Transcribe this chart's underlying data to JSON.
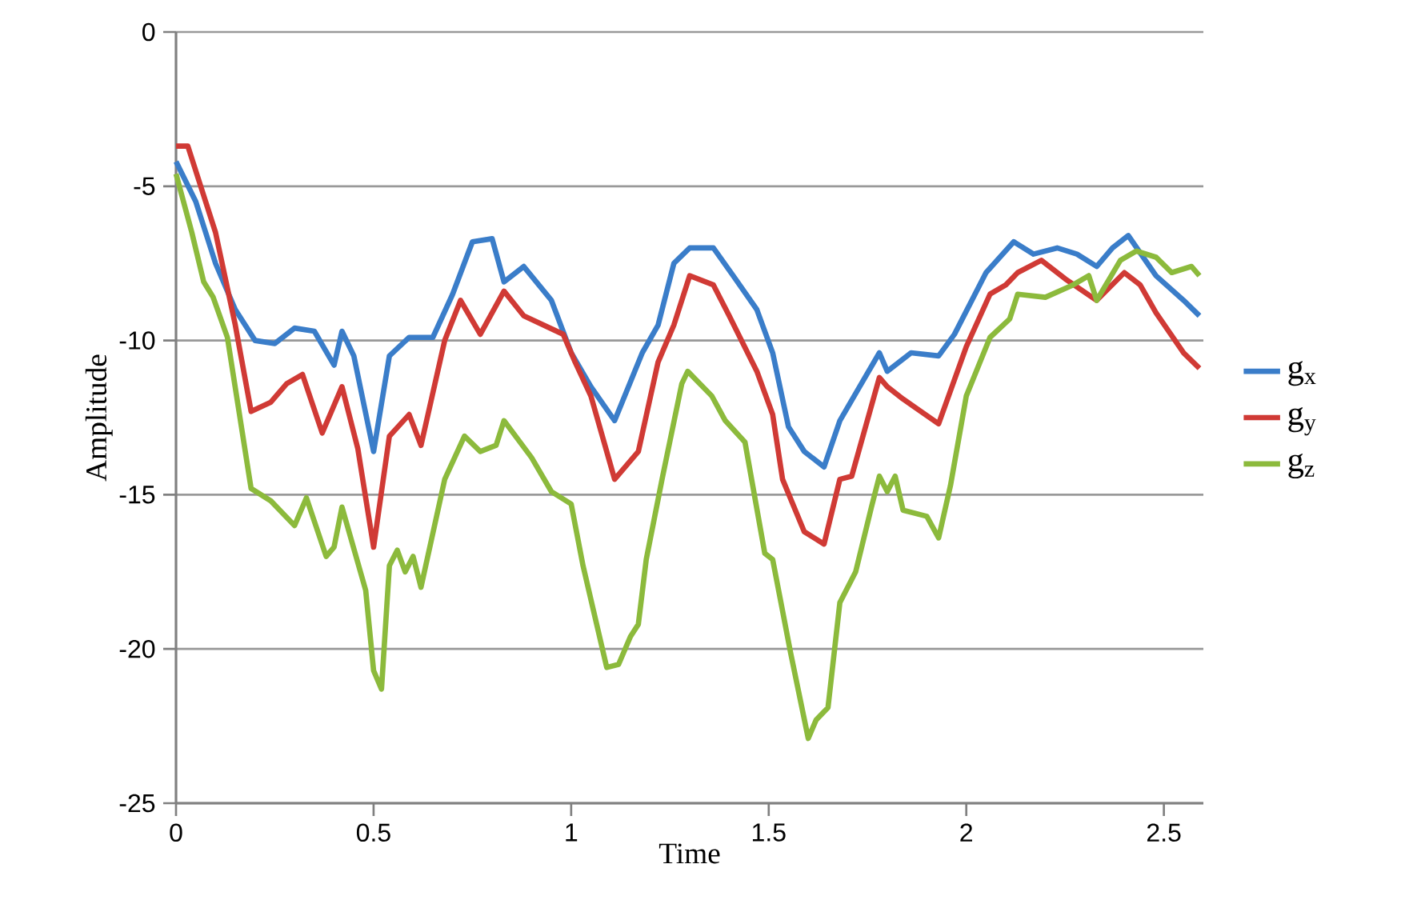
{
  "chart_data": {
    "type": "line",
    "xlabel": "Time",
    "ylabel": "Amplitude",
    "xlim": [
      0,
      2.6
    ],
    "ylim": [
      -25,
      0
    ],
    "xticks": [
      0,
      0.5,
      1,
      1.5,
      2,
      2.5
    ],
    "yticks": [
      -25,
      -20,
      -15,
      -10,
      -5,
      0
    ],
    "grid": "y",
    "legend": "right",
    "marker": "none",
    "line_style": "solid",
    "series": [
      {
        "name": "g$_{x}$",
        "color": "#3a7dc9",
        "x": [
          0,
          0.05,
          0.1,
          0.15,
          0.2,
          0.25,
          0.3,
          0.35,
          0.4,
          0.42,
          0.45,
          0.5,
          0.54,
          0.59,
          0.65,
          0.7,
          0.75,
          0.8,
          0.83,
          0.88,
          0.95,
          1.0,
          1.05,
          1.11,
          1.18,
          1.22,
          1.26,
          1.3,
          1.36,
          1.41,
          1.47,
          1.51,
          1.55,
          1.59,
          1.64,
          1.68,
          1.73,
          1.78,
          1.8,
          1.86,
          1.93,
          1.97,
          2.05,
          2.12,
          2.17,
          2.23,
          2.28,
          2.33,
          2.37,
          2.41,
          2.48,
          2.55,
          2.59
        ],
        "values": [
          -4.2,
          -5.5,
          -7.5,
          -9.0,
          -10.0,
          -10.1,
          -9.6,
          -9.7,
          -10.8,
          -9.7,
          -10.5,
          -13.6,
          -10.5,
          -9.9,
          -9.9,
          -8.5,
          -6.8,
          -6.7,
          -8.1,
          -7.6,
          -8.7,
          -10.4,
          -11.5,
          -12.6,
          -10.4,
          -9.5,
          -7.5,
          -7.0,
          -7.0,
          -7.9,
          -9.0,
          -10.4,
          -12.8,
          -13.6,
          -14.1,
          -12.6,
          -11.5,
          -10.4,
          -11.0,
          -10.4,
          -10.5,
          -9.8,
          -7.8,
          -6.8,
          -7.2,
          -7.0,
          -7.2,
          -7.6,
          -7.0,
          -6.6,
          -7.9,
          -8.7,
          -9.2
        ]
      },
      {
        "name": "g$_{y}$",
        "color": "#d03a35",
        "x": [
          0,
          0.03,
          0.1,
          0.15,
          0.19,
          0.24,
          0.28,
          0.32,
          0.37,
          0.42,
          0.46,
          0.5,
          0.54,
          0.59,
          0.62,
          0.68,
          0.72,
          0.77,
          0.83,
          0.88,
          0.98,
          1.01,
          1.05,
          1.11,
          1.17,
          1.22,
          1.26,
          1.3,
          1.36,
          1.4,
          1.47,
          1.51,
          1.535,
          1.59,
          1.64,
          1.68,
          1.71,
          1.78,
          1.8,
          1.84,
          1.93,
          2.0,
          2.06,
          2.1,
          2.13,
          2.19,
          2.25,
          2.33,
          2.4,
          2.44,
          2.48,
          2.55,
          2.59
        ],
        "values": [
          -3.7,
          -3.7,
          -6.5,
          -9.5,
          -12.3,
          -12.0,
          -11.4,
          -11.1,
          -13.0,
          -11.5,
          -13.5,
          -16.7,
          -13.1,
          -12.4,
          -13.4,
          -10.0,
          -8.7,
          -9.8,
          -8.4,
          -9.2,
          -9.8,
          -10.7,
          -11.8,
          -14.5,
          -13.6,
          -10.7,
          -9.5,
          -7.9,
          -8.2,
          -9.2,
          -11.0,
          -12.4,
          -14.5,
          -16.2,
          -16.6,
          -14.5,
          -14.4,
          -11.2,
          -11.5,
          -11.9,
          -12.7,
          -10.2,
          -8.5,
          -8.2,
          -7.8,
          -7.4,
          -8.0,
          -8.7,
          -7.8,
          -8.2,
          -9.1,
          -10.4,
          -10.9
        ]
      },
      {
        "name": "g$_{z}$",
        "color": "#8cba3c",
        "x": [
          0,
          0.04,
          0.07,
          0.094,
          0.13,
          0.19,
          0.24,
          0.3,
          0.33,
          0.38,
          0.4,
          0.42,
          0.48,
          0.5,
          0.52,
          0.54,
          0.56,
          0.58,
          0.6,
          0.62,
          0.68,
          0.73,
          0.77,
          0.81,
          0.83,
          0.9,
          0.95,
          1.0,
          1.03,
          1.09,
          1.12,
          1.15,
          1.17,
          1.19,
          1.23,
          1.28,
          1.295,
          1.356,
          1.39,
          1.44,
          1.49,
          1.51,
          1.555,
          1.6,
          1.62,
          1.65,
          1.68,
          1.72,
          1.76,
          1.78,
          1.8,
          1.82,
          1.84,
          1.9,
          1.93,
          1.96,
          2.0,
          2.06,
          2.11,
          2.13,
          2.2,
          2.27,
          2.31,
          2.33,
          2.39,
          2.43,
          2.48,
          2.52,
          2.57,
          2.59
        ],
        "values": [
          -4.6,
          -6.5,
          -8.1,
          -8.6,
          -9.9,
          -14.8,
          -15.2,
          -16.0,
          -15.1,
          -17.0,
          -16.7,
          -15.4,
          -18.1,
          -20.7,
          -21.3,
          -17.3,
          -16.8,
          -17.5,
          -17.0,
          -18.0,
          -14.5,
          -13.1,
          -13.6,
          -13.4,
          -12.6,
          -13.8,
          -14.9,
          -15.3,
          -17.3,
          -20.6,
          -20.5,
          -19.6,
          -19.2,
          -17.1,
          -14.5,
          -11.4,
          -11.0,
          -11.8,
          -12.6,
          -13.3,
          -16.9,
          -17.1,
          -20.1,
          -22.9,
          -22.3,
          -21.9,
          -18.5,
          -17.5,
          -15.4,
          -14.4,
          -14.9,
          -14.4,
          -15.5,
          -15.7,
          -16.4,
          -14.7,
          -11.8,
          -9.9,
          -9.3,
          -8.5,
          -8.6,
          -8.2,
          -7.9,
          -8.7,
          -7.4,
          -7.1,
          -7.3,
          -7.8,
          -7.6,
          -7.9
        ]
      }
    ]
  }
}
